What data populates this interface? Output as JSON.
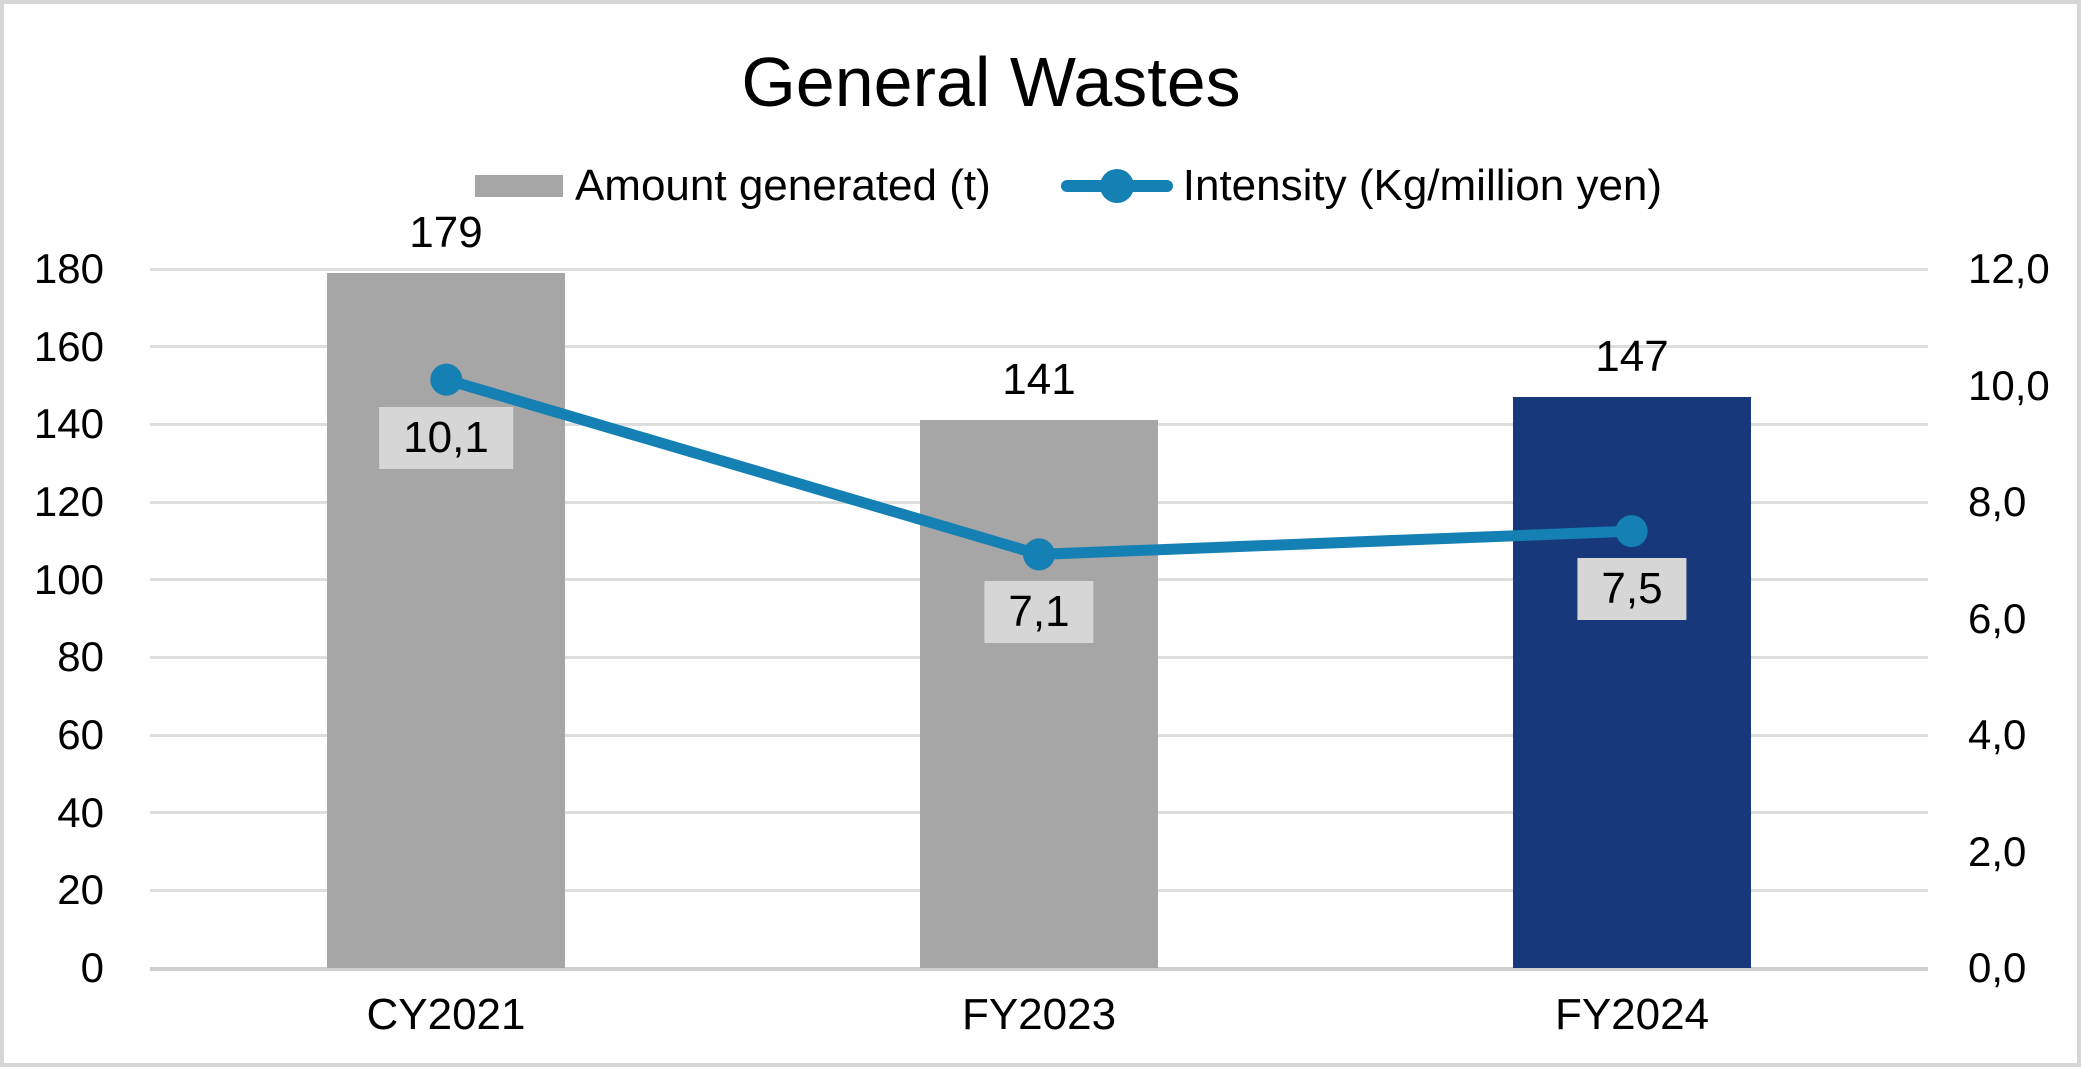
{
  "chart_data": {
    "type": "combo-bar-line",
    "title": "General Wastes",
    "categories": [
      "CY2021",
      "FY2023",
      "FY2024"
    ],
    "series": [
      {
        "name": "Amount generated (t)",
        "type": "bar",
        "axis": "left",
        "values": [
          179,
          141,
          147
        ],
        "value_labels": [
          "179",
          "141",
          "147"
        ],
        "bar_colors": [
          "#A6A6A6",
          "#A6A6A6",
          "#17397C"
        ]
      },
      {
        "name": "Intensity (Kg/million yen)",
        "type": "line",
        "axis": "right",
        "values": [
          10.1,
          7.1,
          7.5
        ],
        "value_labels": [
          "10,1",
          "7,1",
          "7,5"
        ],
        "color": "#1580B4"
      }
    ],
    "left_axis": {
      "min": 0,
      "max": 180,
      "step": 20,
      "tick_labels": [
        "0",
        "20",
        "40",
        "60",
        "80",
        "100",
        "120",
        "140",
        "160",
        "180"
      ]
    },
    "right_axis": {
      "min": 0,
      "max": 12,
      "step": 2,
      "tick_labels": [
        "0,0",
        "2,0",
        "4,0",
        "6,0",
        "8,0",
        "10,0",
        "12,0"
      ]
    },
    "legend_position": "top",
    "grid": true
  },
  "colors": {
    "bar_gray": "#A6A6A6",
    "bar_navy": "#17397C",
    "line_blue": "#1580B4",
    "data_label_bg": "#D6D6D6",
    "gridline": "#DEDEDE",
    "baseline": "#CFCECE",
    "frame_border": "#D6D6D6",
    "text": "#000000"
  }
}
